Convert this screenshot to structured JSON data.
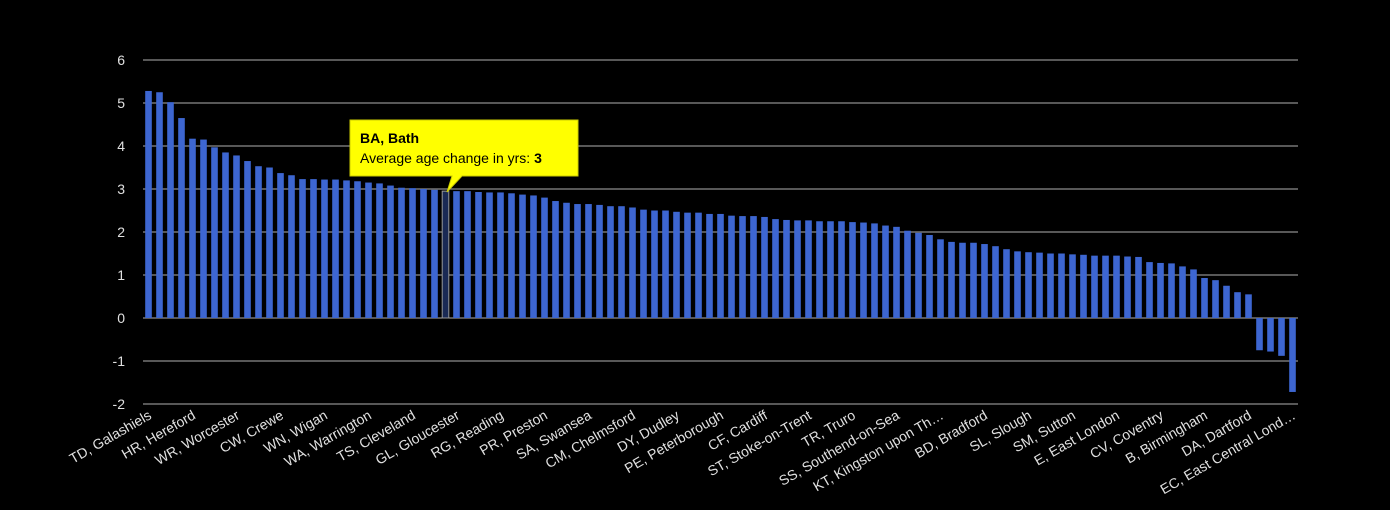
{
  "chart_data": {
    "type": "bar",
    "categories": [
      "TD, Galashiels",
      null,
      null,
      null,
      "HR, Hereford",
      null,
      null,
      null,
      "WR, Worcester",
      null,
      null,
      null,
      "CW, Crewe",
      null,
      null,
      null,
      "WN, Wigan",
      null,
      null,
      null,
      "WA, Warrington",
      null,
      null,
      null,
      "TS, Cleveland",
      null,
      null,
      null,
      "GL, Gloucester",
      null,
      null,
      null,
      "RG, Reading",
      null,
      null,
      null,
      "PR, Preston",
      null,
      null,
      null,
      "SA, Swansea",
      null,
      null,
      null,
      "CM, Chelmsford",
      null,
      null,
      null,
      "DY, Dudley",
      null,
      null,
      null,
      "PE, Peterborough",
      null,
      null,
      null,
      "CF, Cardiff",
      null,
      null,
      null,
      "ST, Stoke-on-Trent",
      null,
      null,
      null,
      "TR, Truro",
      null,
      null,
      null,
      "SS, Southend-on-Sea",
      null,
      null,
      null,
      "KT, Kingston upon Th…",
      null,
      null,
      null,
      "BD, Bradford",
      null,
      null,
      null,
      "SL, Slough",
      null,
      null,
      null,
      "SM, Sutton",
      null,
      null,
      null,
      "E, East London",
      null,
      null,
      null,
      "CV, Coventry",
      null,
      null,
      null,
      "B, Birmingham",
      null,
      null,
      null,
      "DA, Dartford",
      null,
      null,
      null,
      "EC, East Central Lond…"
    ],
    "values": [
      5.28,
      5.25,
      5.02,
      4.65,
      4.17,
      4.15,
      3.97,
      3.85,
      3.78,
      3.65,
      3.53,
      3.5,
      3.37,
      3.32,
      3.23,
      3.23,
      3.22,
      3.22,
      3.2,
      3.18,
      3.15,
      3.13,
      3.08,
      3.03,
      3.02,
      3.0,
      2.98,
      2.95,
      2.95,
      2.95,
      2.93,
      2.92,
      2.92,
      2.9,
      2.87,
      2.85,
      2.8,
      2.72,
      2.68,
      2.65,
      2.65,
      2.63,
      2.6,
      2.6,
      2.57,
      2.52,
      2.5,
      2.5,
      2.47,
      2.45,
      2.45,
      2.42,
      2.42,
      2.38,
      2.37,
      2.37,
      2.35,
      2.3,
      2.28,
      2.27,
      2.27,
      2.25,
      2.25,
      2.25,
      2.23,
      2.22,
      2.2,
      2.15,
      2.12,
      2.03,
      1.98,
      1.93,
      1.83,
      1.77,
      1.75,
      1.75,
      1.72,
      1.67,
      1.6,
      1.55,
      1.53,
      1.52,
      1.5,
      1.5,
      1.48,
      1.47,
      1.45,
      1.45,
      1.45,
      1.43,
      1.42,
      1.3,
      1.28,
      1.27,
      1.2,
      1.13,
      0.93,
      0.88,
      0.75,
      0.6,
      0.55,
      -0.75,
      -0.78,
      -0.88,
      -1.72
    ],
    "color": "#3d66d1",
    "ylim": [
      -2,
      6
    ],
    "yticks": [
      -2,
      -1,
      0,
      1,
      2,
      3,
      4,
      5,
      6
    ],
    "grid": true,
    "tooltip": {
      "title": "BA, Bath",
      "label": "Average age change in yrs:",
      "value": 3
    }
  }
}
